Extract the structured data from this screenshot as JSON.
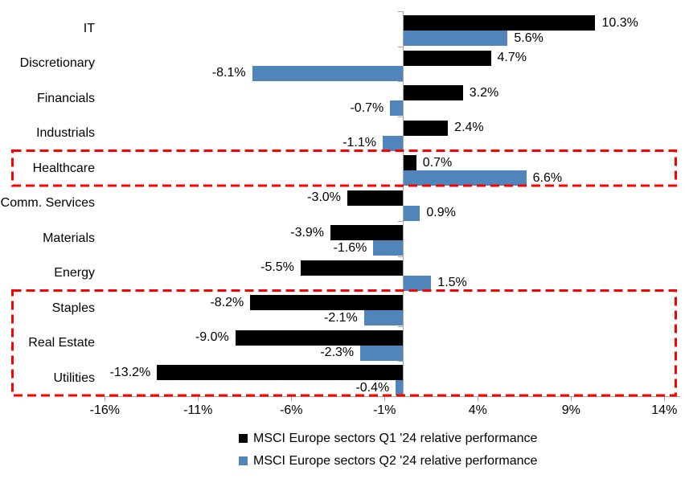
{
  "chart_data": {
    "type": "bar",
    "orientation": "horizontal",
    "title": "",
    "xlabel": "",
    "ylabel": "",
    "categories": [
      "IT",
      "Discretionary",
      "Financials",
      "Industrials",
      "Healthcare",
      "Comm. Services",
      "Materials",
      "Energy",
      "Staples",
      "Real Estate",
      "Utilities"
    ],
    "series": [
      {
        "name": "MSCI Europe sectors Q1 '24 relative performance",
        "color": "#000000",
        "values": [
          10.3,
          4.7,
          3.2,
          2.4,
          0.7,
          -3.0,
          -3.9,
          -5.5,
          -8.2,
          -9.0,
          -13.2
        ]
      },
      {
        "name": "MSCI Europe sectors Q2 '24 relative performance",
        "color": "#5085BC",
        "values": [
          5.6,
          -8.1,
          -0.7,
          -1.1,
          6.6,
          0.9,
          -1.6,
          1.5,
          -2.1,
          -2.3,
          -0.4
        ]
      }
    ],
    "value_labels": {
      "format": "one-decimal-percent",
      "q1": [
        "10.3%",
        "4.7%",
        "3.2%",
        "2.4%",
        "0.7%",
        "-3.0%",
        "-3.9%",
        "-5.5%",
        "-8.2%",
        "-9.0%",
        "-13.2%"
      ],
      "q2": [
        "5.6%",
        "-8.1%",
        "-0.7%",
        "-1.1%",
        "6.6%",
        "0.9%",
        "-1.6%",
        "1.5%",
        "-2.1%",
        "-2.3%",
        "-0.4%"
      ]
    },
    "x_ticks": [
      "-16%",
      "-11%",
      "-6%",
      "-1%",
      "4%",
      "9%",
      "14%"
    ],
    "x_tick_values": [
      -16,
      -11,
      -6,
      -1,
      4,
      9,
      14
    ],
    "xlim": [
      -16.5,
      14.8
    ],
    "grid": false,
    "legend_position": "bottom",
    "axis_color": "#a6a6a6",
    "highlight_color": "#ff0000",
    "highlights": [
      {
        "name": "healthcare",
        "categories": [
          "Healthcare"
        ]
      },
      {
        "name": "staples-realestate-utilities",
        "categories": [
          "Staples",
          "Real Estate",
          "Utilities"
        ]
      }
    ]
  }
}
